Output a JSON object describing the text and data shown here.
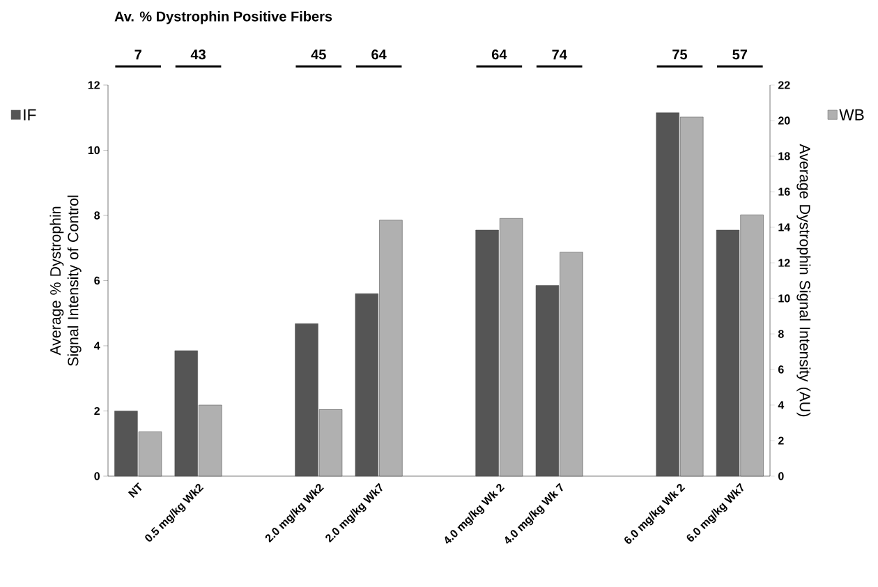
{
  "chart_data": {
    "type": "bar",
    "categories": [
      "NT",
      "0.5 mg/kg Wk2",
      null,
      "2.0 mg/kg Wk2",
      "2.0 mg/kg Wk7",
      null,
      "4.0 mg/kg Wk 2",
      "4.0 mg/kg Wk 7",
      null,
      "6.0 mg/kg Wk 2",
      "6.0 mg/kg Wk7"
    ],
    "series": [
      {
        "name": "IF",
        "color": "#555555",
        "values": [
          2.0,
          3.85,
          null,
          4.68,
          5.6,
          null,
          7.55,
          5.85,
          null,
          11.15,
          7.55
        ]
      },
      {
        "name": "WB",
        "color": "#b0b0b0",
        "axis": "y2",
        "values": [
          2.5,
          4.0,
          null,
          3.75,
          14.4,
          null,
          14.5,
          12.6,
          null,
          20.2,
          14.7
        ]
      }
    ],
    "ylabel": "Average % Dystrophin Signal Intensity of Control",
    "y2label": "Average Dystrophin Signal Intensity (AU)",
    "ylim": [
      0,
      12
    ],
    "yticks": [
      0,
      2,
      4,
      6,
      8,
      10,
      12
    ],
    "y2lim": [
      0,
      22
    ],
    "y2ticks": [
      0,
      2,
      4,
      6,
      8,
      10,
      12,
      14,
      16,
      18,
      20,
      22
    ],
    "legend": "top",
    "annotations": [
      "Av. % Dystrophin Positive Fibers",
      "7",
      "43",
      "45",
      "64",
      "64",
      "74",
      "75",
      "57"
    ]
  }
}
